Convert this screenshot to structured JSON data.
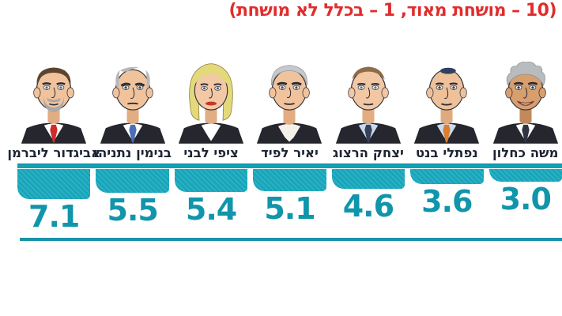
{
  "title": "(10 – מושחת מאוד, 1 – בכלל לא מושחת)",
  "ui_colors": {
    "title_red": "#e12c2c",
    "name_text": "#1d2433",
    "bar_teal": "#18a6bb",
    "strip_teal": "#12a0b5",
    "strip_edge": "#0d7f93",
    "value_teal": "#1095ab",
    "baseline_teal": "#1b93a9"
  },
  "people": [
    {
      "name": "אביגדור ליברמן",
      "value": "7.1",
      "colors": {
        "hair": "#5c452f",
        "beard": "#a9a9a7",
        "skin": "#f1c39c",
        "skin_shade": "#e2ad82",
        "suit": "#26262e",
        "shirt": "#ffffff",
        "tie": "#cf2b2b",
        "eye": "#5a7086",
        "brow": "#3a3428"
      }
    },
    {
      "name": "בנימין נתניהו",
      "value": "5.5",
      "colors": {
        "hair": "#b5b8bd",
        "skin": "#f1c39c",
        "skin_shade": "#e2ad82",
        "suit": "#26262e",
        "shirt": "#ffffff",
        "tie": "#4a6fb5",
        "eye": "#3c4554",
        "brow": "#4c4f55"
      }
    },
    {
      "name": "ציפי לבני",
      "value": "5.4",
      "colors": {
        "hair": "#e3d97b",
        "skin": "#f3c8a6",
        "skin_shade": "#e2ad82",
        "suit": "#26262e",
        "shirt": "#ffffff",
        "eye": "#4d5668",
        "brow": "#8a7a3e",
        "lips": "#c0392b"
      }
    },
    {
      "name": "יאיר לפיד",
      "value": "5.1",
      "colors": {
        "hair": "#c6c8cb",
        "skin": "#f1c39c",
        "skin_shade": "#e2ad82",
        "suit": "#26262e",
        "shirt": "#f4f1ea",
        "eye": "#46505c",
        "brow": "#23262d"
      }
    },
    {
      "name": "יצחק הרצוג",
      "value": "4.6",
      "colors": {
        "hair": "#8f6b49",
        "skin": "#f3c6a4",
        "skin_shade": "#e2ad82",
        "suit": "#26262e",
        "shirt": "#c9dcee",
        "tie": "#37415a",
        "eye": "#4a80b4",
        "brow": "#6d5133"
      }
    },
    {
      "name": "נפתלי בנט",
      "value": "3.6",
      "colors": {
        "kippah": "#31405f",
        "skin": "#eec19a",
        "skin_shade": "#dfab7e",
        "suit": "#26262e",
        "shirt": "#c9dcee",
        "tie": "#df7d2c",
        "eye": "#3a424e",
        "brow": "#4a3c2c"
      }
    },
    {
      "name": "משה כחלון",
      "value": "3.0",
      "colors": {
        "hair": "#b9bcbe",
        "skin": "#d79e6e",
        "skin_shade": "#c28a5c",
        "suit": "#26262e",
        "shirt": "#ffffff",
        "tie": "#2e3440",
        "eye": "#2f363f",
        "brow": "#33302b"
      }
    }
  ],
  "chart_data": {
    "type": "bar",
    "title": "(10 – מושחת מאוד, 1 – בכלל לא מושחת)",
    "categories": [
      "אביגדור ליברמן",
      "בנימין נתניהו",
      "ציפי לבני",
      "יאיר לפיד",
      "יצחק הרצוג",
      "נפתלי בנט",
      "משה כחלון"
    ],
    "values": [
      7.1,
      5.5,
      5.4,
      5.1,
      4.6,
      3.6,
      3.0
    ],
    "ylim": [
      1,
      10
    ],
    "orientation": "vertical-hanging-below-header-strip",
    "bar_color": "#18a6bb",
    "value_labels_shown": true,
    "reading_direction": "rtl",
    "legend": "none",
    "grid": false
  }
}
